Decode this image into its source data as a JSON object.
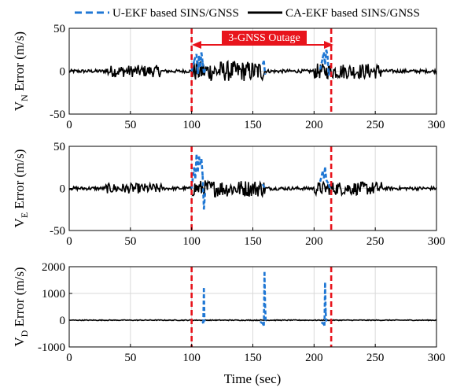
{
  "legend": {
    "items": [
      {
        "label": "U-EKF based SINS/GNSS",
        "color": "#1f77d4",
        "dash": true
      },
      {
        "label": "CA-EKF based SINS/GNSS",
        "color": "#000000",
        "dash": false
      }
    ]
  },
  "annotation": {
    "text": "3-GNSS Outage",
    "color": "#e8141c",
    "x_start": 100,
    "x_end": 214
  },
  "xlabel": "Time (sec)",
  "chart_data": [
    {
      "type": "line",
      "ylabel_main": "V",
      "ylabel_sub": "N",
      "ylabel_rest": " Error (m/s)",
      "xlim": [
        0,
        300
      ],
      "ylim": [
        -50,
        50
      ],
      "xticks": [
        0,
        50,
        100,
        150,
        200,
        250,
        300
      ],
      "yticks": [
        -50,
        0,
        50
      ],
      "grid": true,
      "outage_lines_x": [
        100,
        214
      ],
      "series": [
        {
          "name": "U-EKF based SINS/GNSS",
          "color": "#1f77d4",
          "style": "dashed",
          "x": [
            100,
            102,
            104,
            105,
            106,
            107,
            108,
            109,
            110,
            112,
            158,
            159,
            160,
            205,
            207,
            208,
            209,
            210,
            211,
            212,
            213
          ],
          "y": [
            0,
            12,
            20,
            -3,
            18,
            5,
            22,
            10,
            -2,
            5,
            8,
            12,
            -4,
            2,
            15,
            22,
            8,
            25,
            18,
            -5,
            0
          ]
        },
        {
          "name": "CA-EKF based SINS/GNSS",
          "color": "#000000",
          "style": "solid",
          "noise_profile": [
            {
              "from": 0,
              "to": 300,
              "amp": 2
            },
            {
              "from": 30,
              "to": 75,
              "amp": 7
            },
            {
              "from": 100,
              "to": 160,
              "amp": 12
            },
            {
              "from": 200,
              "to": 255,
              "amp": 9
            }
          ]
        }
      ]
    },
    {
      "type": "line",
      "ylabel_main": "V",
      "ylabel_sub": "E",
      "ylabel_rest": " Error (m/s)",
      "xlim": [
        0,
        300
      ],
      "ylim": [
        -50,
        50
      ],
      "xticks": [
        0,
        50,
        100,
        150,
        200,
        250,
        300
      ],
      "yticks": [
        -50,
        0,
        50
      ],
      "grid": true,
      "outage_lines_x": [
        100,
        214
      ],
      "series": [
        {
          "name": "U-EKF based SINS/GNSS",
          "color": "#1f77d4",
          "style": "dashed",
          "x": [
            100,
            102,
            103,
            104,
            105,
            106,
            107,
            108,
            109,
            110,
            111,
            158,
            160,
            205,
            207,
            208,
            209,
            210,
            212,
            213
          ],
          "y": [
            0,
            25,
            12,
            40,
            20,
            38,
            28,
            35,
            15,
            -25,
            -5,
            5,
            0,
            8,
            20,
            12,
            25,
            10,
            5,
            0
          ]
        },
        {
          "name": "CA-EKF based SINS/GNSS",
          "color": "#000000",
          "style": "solid",
          "noise_profile": [
            {
              "from": 0,
              "to": 300,
              "amp": 2
            },
            {
              "from": 30,
              "to": 75,
              "amp": 6
            },
            {
              "from": 100,
              "to": 160,
              "amp": 10
            },
            {
              "from": 200,
              "to": 255,
              "amp": 8
            }
          ]
        }
      ]
    },
    {
      "type": "line",
      "ylabel_main": "V",
      "ylabel_sub": "D",
      "ylabel_rest": " Error (m/s)",
      "xlim": [
        0,
        300
      ],
      "ylim": [
        -1000,
        2000
      ],
      "xticks": [
        0,
        50,
        100,
        150,
        200,
        250,
        300
      ],
      "yticks": [
        -1000,
        0,
        1000,
        2000
      ],
      "grid": true,
      "outage_lines_x": [
        100,
        214
      ],
      "series": [
        {
          "name": "U-EKF based SINS/GNSS",
          "color": "#1f77d4",
          "style": "dashed",
          "x": [
            109,
            109.5,
            110,
            110.5,
            156,
            158,
            159,
            159.5,
            160,
            160.5,
            206,
            208,
            208.5,
            209,
            209.5,
            210
          ],
          "y": [
            -50,
            -120,
            1200,
            -50,
            -60,
            -120,
            -200,
            1800,
            600,
            -50,
            -80,
            -150,
            -200,
            1400,
            300,
            -50
          ]
        },
        {
          "name": "CA-EKF based SINS/GNSS",
          "color": "#000000",
          "style": "solid",
          "noise_profile": [
            {
              "from": 0,
              "to": 300,
              "amp": 15
            }
          ]
        }
      ]
    }
  ]
}
